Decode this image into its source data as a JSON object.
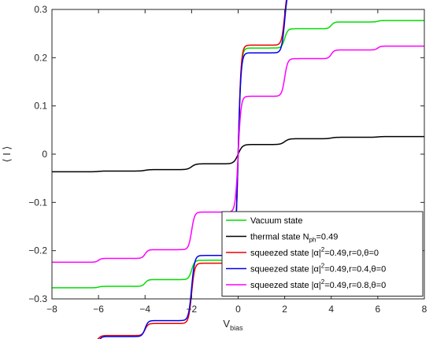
{
  "chart_data": {
    "type": "line",
    "xlabel": "V",
    "xlabel_sub": "bias",
    "ylabel": "⟨ I ⟩",
    "xlim": [
      -8,
      8
    ],
    "ylim": [
      -0.3,
      0.3
    ],
    "xticks": [
      -8,
      -6,
      -4,
      -2,
      0,
      2,
      4,
      6,
      8
    ],
    "yticks": [
      -0.3,
      -0.2,
      -0.1,
      0,
      0.1,
      0.2,
      0.3
    ],
    "xtick_labels": [
      "−8",
      "−6",
      "−4",
      "−2",
      "0",
      "2",
      "4",
      "6",
      "8"
    ],
    "ytick_labels": [
      "−0.3",
      "−0.2",
      "−0.1",
      "0",
      "0.1",
      "0.2",
      "0.3"
    ],
    "grid": false,
    "legend_position": "bottom-right",
    "series": [
      {
        "name": "Vacuum state",
        "color": "#00dd00",
        "legend": {
          "main": "Vacuum state"
        },
        "steps": [
          {
            "center": 0,
            "height": 0.22,
            "width": 0.12
          },
          {
            "center": 2,
            "height": 0.04,
            "width": 0.13
          },
          {
            "center": 4,
            "height": 0.014,
            "width": 0.13
          },
          {
            "center": 6,
            "height": 0.003,
            "width": 0.13
          }
        ]
      },
      {
        "name": "thermal state N_ph=0.49",
        "color": "#000000",
        "legend": {
          "pre": "thermal state N",
          "sub": "ph",
          "post": "=0.49"
        },
        "steps": [
          {
            "center": 0,
            "height": 0.02,
            "width": 0.18
          },
          {
            "center": 2,
            "height": 0.012,
            "width": 0.18
          },
          {
            "center": 4,
            "height": 0.003,
            "width": 0.18
          },
          {
            "center": 6,
            "height": 0.0015,
            "width": 0.18
          }
        ]
      },
      {
        "name": "squeezed state |α|^2=0.49,r=0,θ=0",
        "color": "#ee0000",
        "legend": {
          "pre": "squeezed state |α|",
          "sup": "2",
          "post": "=0.49,r=0,θ=0"
        },
        "steps": [
          {
            "center": 0,
            "height": 0.226,
            "width": 0.12
          },
          {
            "center": 2,
            "height": 0.125,
            "width": 0.13
          },
          {
            "center": 4,
            "height": 0.025,
            "width": 0.13
          },
          {
            "center": 6,
            "height": 0.012,
            "width": 0.13
          }
        ]
      },
      {
        "name": "squeezed state |α|^2=0.49,r=0.4,θ=0",
        "color": "#0000ee",
        "legend": {
          "pre": "squeezed state |α|",
          "sup": "2",
          "post": "=0.49,r=0.4,θ=0"
        },
        "steps": [
          {
            "center": 0,
            "height": 0.21,
            "width": 0.12
          },
          {
            "center": 2,
            "height": 0.135,
            "width": 0.13
          },
          {
            "center": 4,
            "height": 0.033,
            "width": 0.13
          },
          {
            "center": 6,
            "height": 0.02,
            "width": 0.13
          }
        ]
      },
      {
        "name": "squeezed state |α|^2=0.49,r=0.8,θ=0",
        "color": "#ff00ff",
        "legend": {
          "pre": "squeezed state |α|",
          "sup": "2",
          "post": "=0.49,r=0.8,θ=0"
        },
        "steps": [
          {
            "center": 0,
            "height": 0.12,
            "width": 0.12
          },
          {
            "center": 2,
            "height": 0.078,
            "width": 0.13
          },
          {
            "center": 4,
            "height": 0.018,
            "width": 0.13
          },
          {
            "center": 6,
            "height": 0.008,
            "width": 0.13
          }
        ]
      }
    ]
  }
}
